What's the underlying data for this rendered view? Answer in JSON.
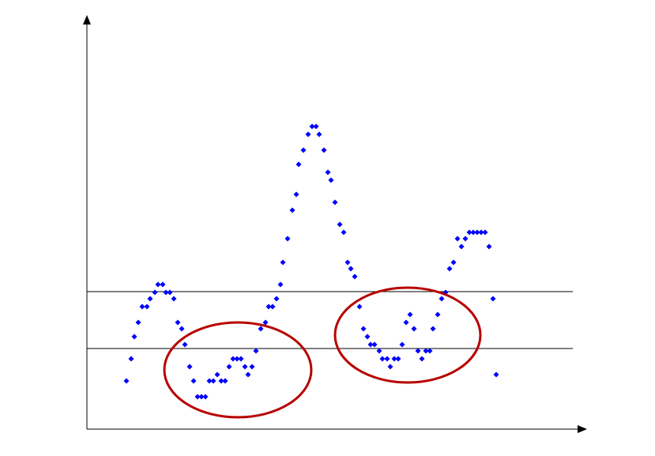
{
  "chart_data": {
    "type": "scatter",
    "x": [
      50,
      56,
      60,
      65,
      70,
      76,
      80,
      86,
      90,
      96,
      100,
      105,
      110,
      115,
      120,
      124,
      130,
      135,
      140,
      145,
      150,
      155,
      160,
      165,
      170,
      175,
      180,
      185,
      190,
      195,
      200,
      204,
      209,
      214,
      220,
      226,
      230,
      235,
      240,
      245,
      248,
      254,
      260,
      265,
      268,
      274,
      280,
      285,
      290,
      294,
      300,
      305,
      309,
      314,
      320,
      325,
      330,
      334,
      339,
      345,
      350,
      355,
      359,
      364,
      370,
      374,
      380,
      384,
      389,
      394,
      399,
      404,
      409,
      414,
      419,
      424,
      429,
      434,
      438,
      444,
      449,
      454,
      459,
      464,
      469,
      474,
      479,
      484,
      489,
      494,
      499,
      504,
      509,
      514,
      518
    ],
    "series": [
      {
        "color": "#0000ff",
        "values": [
          61,
          89,
          117,
          135,
          155,
          155,
          165,
          173,
          183,
          183,
          173,
          173,
          165,
          135,
          127,
          107,
          79,
          61,
          41,
          41,
          41,
          61,
          61,
          69,
          61,
          61,
          79,
          89,
          89,
          89,
          79,
          69,
          79,
          99,
          127,
          135,
          155,
          155,
          165,
          183,
          211,
          241,
          277,
          297,
          335,
          353,
          373,
          383,
          383,
          373,
          353,
          325,
          315,
          287,
          259,
          249,
          211,
          203,
          193,
          155,
          127,
          117,
          107,
          107,
          99,
          89,
          89,
          79,
          89,
          89,
          107,
          135,
          145,
          127,
          99,
          89,
          99,
          99,
          127,
          145,
          165,
          173,
          203,
          211,
          241,
          231,
          241,
          249,
          249,
          249,
          249,
          249,
          231,
          165,
          69
        ]
      }
    ],
    "hlines": [
      174,
      102
    ],
    "xlim": [
      0,
      630
    ],
    "ylim": [
      0,
      523
    ]
  }
}
